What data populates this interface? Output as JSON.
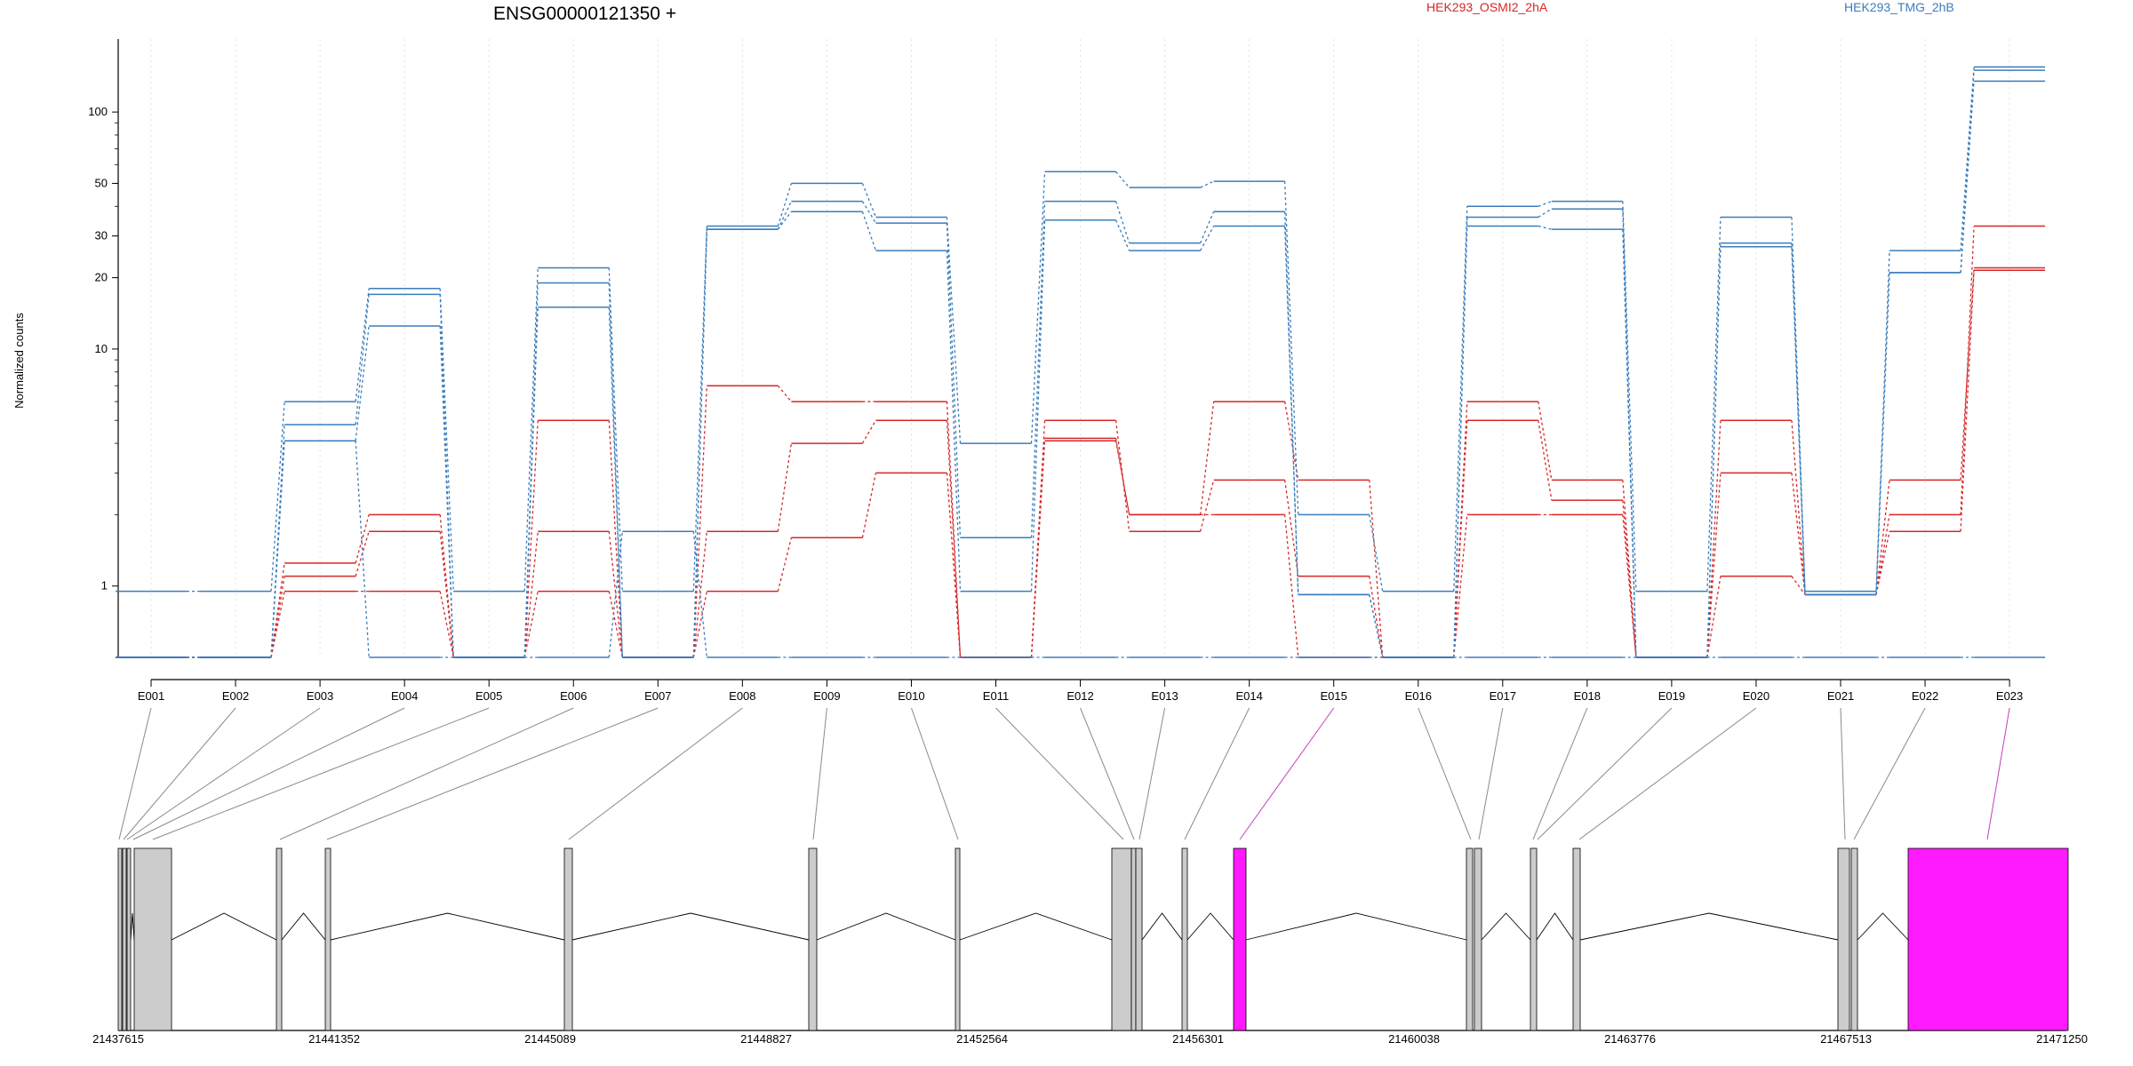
{
  "chart_data": {
    "type": "line",
    "title": "ENSG00000121350 +",
    "ylabel": "Normalized counts",
    "xlabel": "",
    "y_scale": "log",
    "ylim": [
      0.5,
      180
    ],
    "y_ticks": [
      1,
      10,
      20,
      30,
      50,
      100
    ],
    "y_tick_labels": [
      "1",
      "10",
      "20",
      "30",
      "50",
      "100"
    ],
    "legend_position": "top",
    "grid": "vertical dotted lines at exon bins",
    "categories": [
      "E001",
      "E002",
      "E003",
      "E004",
      "E005",
      "E006",
      "E007",
      "E008",
      "E009",
      "E010",
      "E011",
      "E012",
      "E013",
      "E014",
      "E015",
      "E016",
      "E017",
      "E018",
      "E019",
      "E020",
      "E021",
      "E022",
      "E023"
    ],
    "groups": [
      {
        "label": "HEK293_OSMI2_2hA",
        "color": "#d62728"
      },
      {
        "label": "HEK293_TMG_2hB",
        "color": "#3a7dbc"
      }
    ],
    "series": [
      {
        "group": 0,
        "color": "#d62728",
        "values": [
          0.5,
          0.5,
          1.25,
          2.0,
          0.5,
          1.7,
          0.5,
          7.0,
          6.0,
          6.0,
          0.5,
          4.2,
          2.0,
          6.0,
          2.8,
          0.5,
          6.0,
          2.8,
          0.5,
          5.0,
          0.92,
          2.0,
          33
        ]
      },
      {
        "group": 0,
        "color": "#d62728",
        "values": [
          0.5,
          0.5,
          1.1,
          1.7,
          0.5,
          5.0,
          0.5,
          1.7,
          4.0,
          5.0,
          0.5,
          5.0,
          1.7,
          2.8,
          1.1,
          0.5,
          5.0,
          2.3,
          0.5,
          3.0,
          0.92,
          2.8,
          22
        ]
      },
      {
        "group": 0,
        "color": "#d62728",
        "values": [
          0.5,
          0.5,
          0.95,
          0.95,
          0.5,
          0.95,
          0.5,
          0.95,
          1.6,
          3.0,
          0.5,
          4.1,
          2.0,
          2.0,
          0.5,
          0.5,
          2.0,
          2.0,
          0.5,
          1.1,
          0.92,
          1.7,
          21.5
        ]
      },
      {
        "group": 1,
        "color": "#3a7dbc",
        "values": [
          0.95,
          0.95,
          6.0,
          18.0,
          0.95,
          22.0,
          0.95,
          33,
          50,
          36,
          4.0,
          56,
          48,
          51,
          2.0,
          0.95,
          40,
          42,
          0.95,
          36,
          0.95,
          26,
          155
        ]
      },
      {
        "group": 1,
        "color": "#3a7dbc",
        "values": [
          0.5,
          0.5,
          4.8,
          17.0,
          0.5,
          19.0,
          0.5,
          32,
          42,
          34,
          1.6,
          42,
          28,
          38,
          0.92,
          0.5,
          36,
          39,
          0.5,
          28,
          0.92,
          21,
          150
        ]
      },
      {
        "group": 1,
        "color": "#3a7dbc",
        "values": [
          0.5,
          0.5,
          4.1,
          12.5,
          0.5,
          15.0,
          0.5,
          32,
          38,
          26,
          0.95,
          35,
          26,
          33,
          0.92,
          0.5,
          33,
          32,
          0.5,
          27,
          0.92,
          21,
          135
        ]
      },
      {
        "group": 1,
        "color": "#3a7dbc",
        "values": [
          0.5,
          0.5,
          4.1,
          0.5,
          0.5,
          0.5,
          1.7,
          0.5,
          0.5,
          0.5,
          0.5,
          0.5,
          0.5,
          0.5,
          0.5,
          0.5,
          0.5,
          0.5,
          0.5,
          0.5,
          0.5,
          0.5,
          0.5
        ]
      }
    ],
    "genomic_ticks": [
      "21437615",
      "21441352",
      "21445089",
      "21448827",
      "21452564",
      "21456301",
      "21460038",
      "21463776",
      "21467513",
      "21471250"
    ],
    "highlighted_bins": [
      "E015",
      "E023"
    ],
    "highlight_color": "#ff1aff"
  }
}
